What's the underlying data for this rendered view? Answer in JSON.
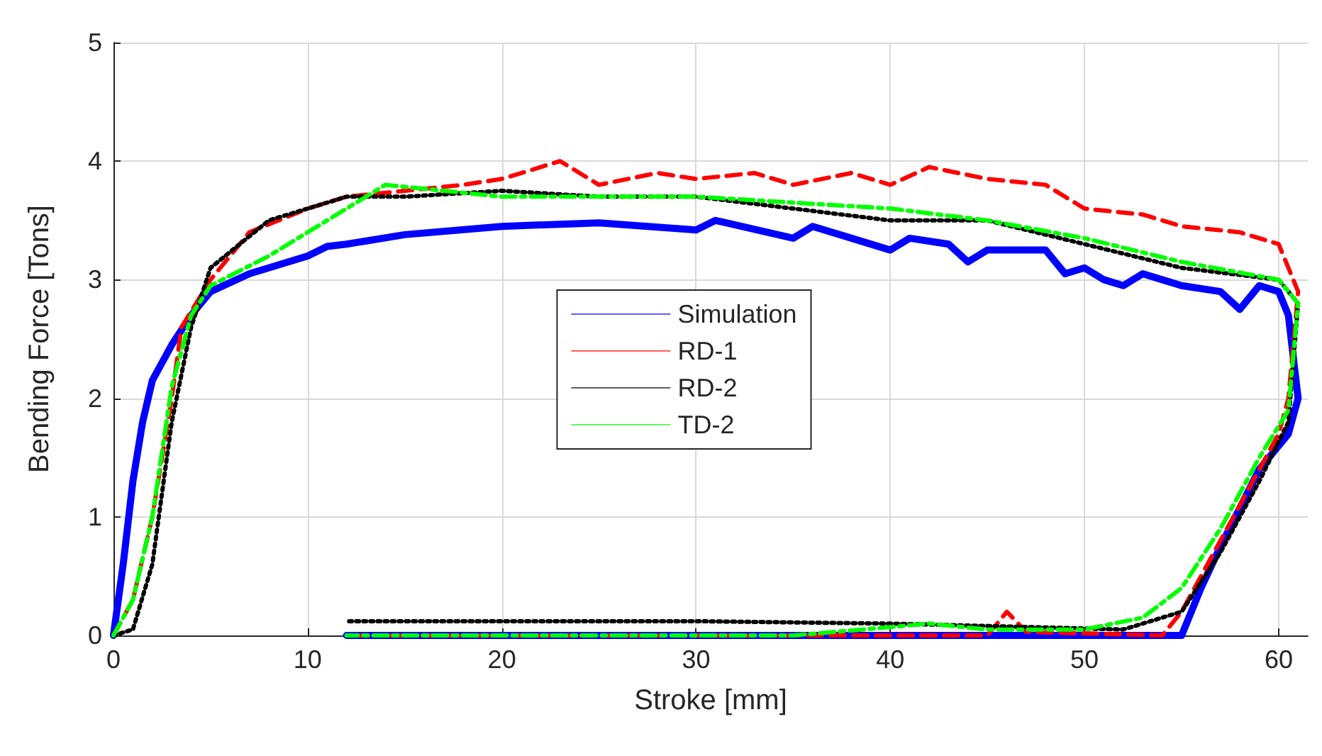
{
  "chart_data": {
    "type": "line",
    "xlabel": "Stroke [mm]",
    "ylabel": "Bending Force [Tons]",
    "xlim": [
      0,
      61.5
    ],
    "ylim": [
      0,
      5
    ],
    "xticks": [
      0,
      10,
      20,
      30,
      40,
      50,
      60
    ],
    "yticks": [
      0,
      1,
      2,
      3,
      4,
      5
    ],
    "grid": true,
    "legend": "center",
    "marker": "none",
    "series": [
      {
        "name": "Simulation",
        "color": "#0000ff",
        "line_style": "solid",
        "x": [
          0,
          0.5,
          1,
          1.5,
          2,
          3,
          4,
          5,
          7,
          10,
          11,
          12,
          15,
          20,
          25,
          30,
          31,
          35,
          36,
          38,
          40,
          41,
          43,
          44,
          45,
          46,
          48,
          49,
          50,
          51,
          52,
          53,
          54,
          55,
          57,
          58,
          59,
          60,
          60.5,
          61,
          60.5,
          59,
          57,
          56,
          55.5,
          55,
          40,
          12
        ],
        "values": [
          0,
          0.6,
          1.3,
          1.8,
          2.15,
          2.45,
          2.7,
          2.9,
          3.05,
          3.2,
          3.28,
          3.3,
          3.38,
          3.45,
          3.48,
          3.42,
          3.5,
          3.35,
          3.45,
          3.35,
          3.25,
          3.35,
          3.3,
          3.15,
          3.25,
          3.25,
          3.25,
          3.05,
          3.1,
          3.0,
          2.95,
          3.05,
          3.0,
          2.95,
          2.9,
          2.75,
          2.95,
          2.9,
          2.7,
          2.0,
          1.7,
          1.4,
          0.75,
          0.4,
          0.2,
          0,
          0,
          0
        ]
      },
      {
        "name": "RD-1",
        "color": "#ff0000",
        "line_style": "dashed",
        "x": [
          0,
          1,
          2,
          3,
          3.5,
          5,
          7,
          10,
          12,
          15,
          18,
          20,
          23,
          25,
          28,
          30,
          33,
          35,
          38,
          40,
          42,
          45,
          48,
          50,
          53,
          55,
          58,
          60,
          61,
          60.5,
          60,
          59,
          57,
          55,
          54,
          47,
          46,
          45,
          12
        ],
        "values": [
          0,
          0.3,
          1.0,
          2.0,
          2.6,
          3.0,
          3.4,
          3.6,
          3.7,
          3.75,
          3.8,
          3.85,
          4.0,
          3.8,
          3.9,
          3.85,
          3.9,
          3.8,
          3.9,
          3.8,
          3.95,
          3.85,
          3.8,
          3.6,
          3.55,
          3.45,
          3.4,
          3.3,
          2.9,
          2.0,
          1.7,
          1.4,
          0.8,
          0.2,
          0,
          0.03,
          0.2,
          0,
          0
        ]
      },
      {
        "name": "RD-2",
        "color": "#000000",
        "line_style": "dotted",
        "x": [
          0,
          1,
          2,
          3,
          4,
          5,
          8,
          10,
          12,
          15,
          20,
          25,
          30,
          35,
          40,
          45,
          50,
          55,
          60,
          61,
          60.5,
          59,
          57,
          55,
          52,
          45,
          40,
          30,
          12
        ],
        "values": [
          0,
          0.05,
          0.6,
          1.8,
          2.6,
          3.1,
          3.5,
          3.6,
          3.7,
          3.7,
          3.75,
          3.7,
          3.7,
          3.6,
          3.5,
          3.5,
          3.3,
          3.1,
          3.0,
          2.8,
          1.8,
          1.3,
          0.7,
          0.2,
          0.05,
          0.08,
          0.1,
          0.12,
          0.12
        ]
      },
      {
        "name": "TD-2",
        "color": "#00ff00",
        "line_style": "dashdot",
        "x": [
          0,
          1,
          2,
          3,
          4,
          5,
          8,
          10,
          12,
          14,
          20,
          25,
          30,
          35,
          40,
          45,
          50,
          55,
          60,
          61,
          60.5,
          59,
          57,
          55,
          53,
          50,
          45,
          42,
          40,
          35,
          12
        ],
        "values": [
          0,
          0.3,
          1.0,
          2.1,
          2.7,
          2.95,
          3.2,
          3.4,
          3.6,
          3.8,
          3.7,
          3.7,
          3.7,
          3.65,
          3.6,
          3.5,
          3.35,
          3.15,
          3.0,
          2.8,
          1.9,
          1.5,
          0.9,
          0.4,
          0.15,
          0.05,
          0.05,
          0.1,
          0.07,
          0,
          0
        ]
      }
    ]
  }
}
